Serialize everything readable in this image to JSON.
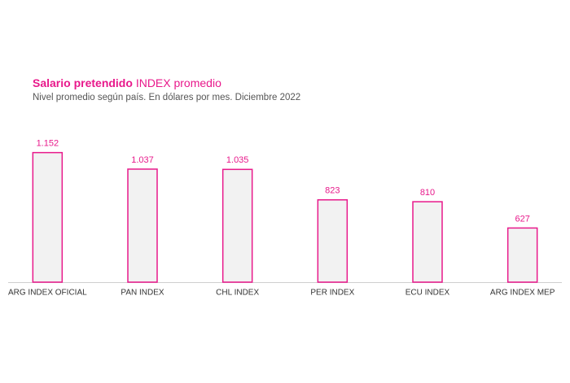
{
  "chart_data": {
    "type": "bar",
    "title": [
      "Salario pretendido",
      "INDEX promedio"
    ],
    "subtitle": "Nivel promedio según país. En dólares por mes. Diciembre 2022",
    "categories": [
      "ARG INDEX OFICIAL",
      "PAN INDEX",
      "CHL INDEX",
      "PER INDEX",
      "ECU INDEX",
      "ARG INDEX MEP"
    ],
    "values": [
      1152,
      1037,
      1035,
      823,
      810,
      627
    ],
    "value_labels": [
      "1.152",
      "1.037",
      "1.035",
      "823",
      "810",
      "627"
    ],
    "color": "#e8198b",
    "fill": "#f2f2f2",
    "ylim": [
      250,
      1150
    ]
  }
}
